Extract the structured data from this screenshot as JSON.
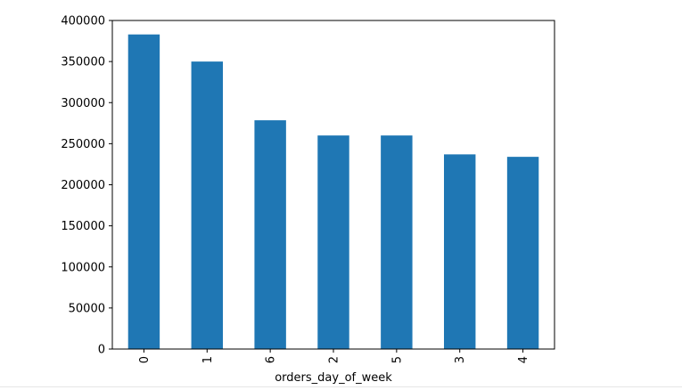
{
  "chart_data": {
    "type": "bar",
    "categories": [
      "0",
      "1",
      "6",
      "2",
      "5",
      "3",
      "4"
    ],
    "values": [
      383000,
      350000,
      278500,
      260000,
      260000,
      237000,
      234000
    ],
    "xlabel": "orders_day_of_week",
    "ylabel": "",
    "title": "",
    "ylim": [
      0,
      400000
    ],
    "yticks": [
      0,
      50000,
      100000,
      150000,
      200000,
      250000,
      300000,
      350000,
      400000
    ],
    "ytick_labels": [
      "0",
      "50000",
      "100000",
      "150000",
      "200000",
      "250000",
      "300000",
      "350000",
      "400000"
    ],
    "grid": false,
    "legend": "none",
    "bar_color": "#1f77b4"
  }
}
